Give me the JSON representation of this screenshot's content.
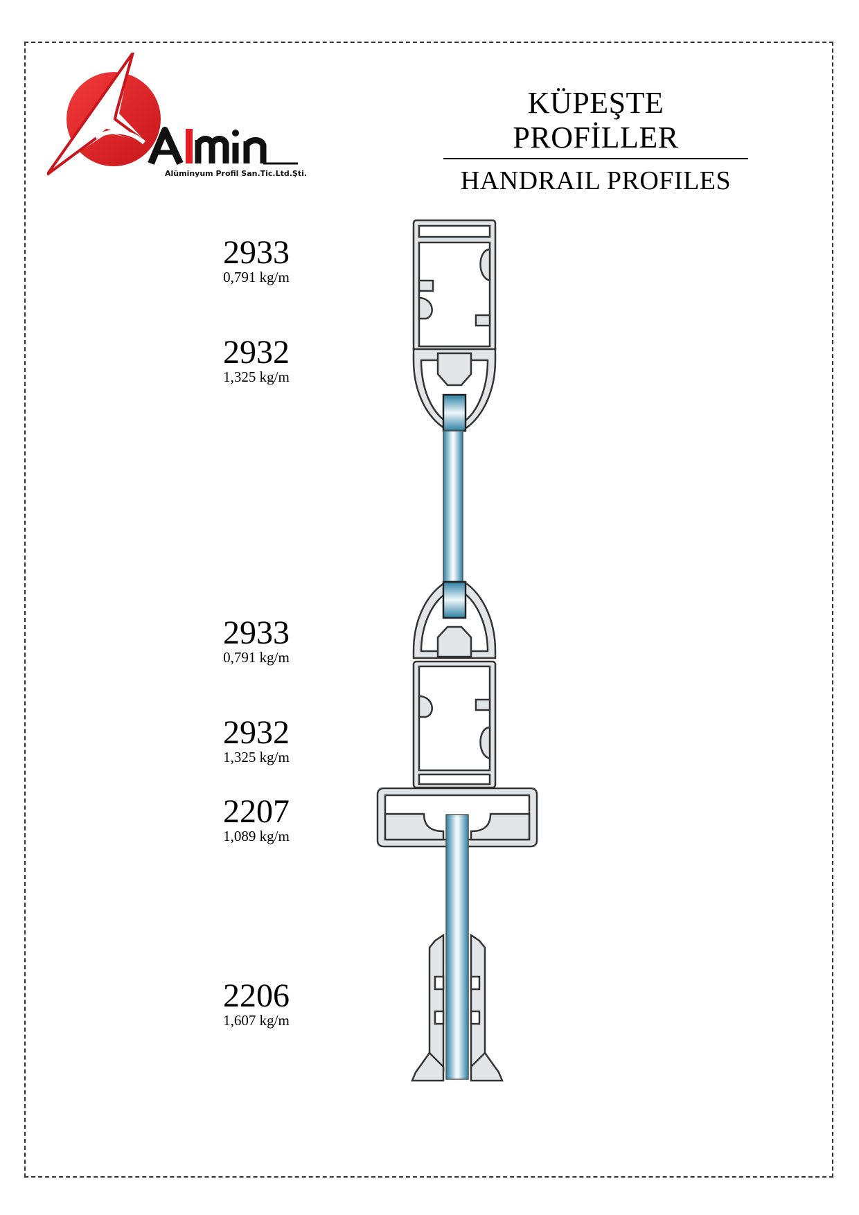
{
  "header": {
    "title_tr": "KÜPEŞTE PROFİLLER",
    "title_en": "HANDRAIL PROFILES"
  },
  "logo": {
    "brand": "Almin",
    "company": "Alüminyum Profil San.Tic.Ltd.Şti.",
    "brand_color": "#e31e24"
  },
  "profiles": [
    {
      "code": "2933",
      "weight": "0,791 kg/m"
    },
    {
      "code": "2932",
      "weight": "1,325 kg/m"
    },
    {
      "code": "2933",
      "weight": "0,791 kg/m"
    },
    {
      "code": "2932",
      "weight": "1,325 kg/m"
    },
    {
      "code": "2207",
      "weight": "1,089 kg/m"
    },
    {
      "code": "2206",
      "weight": "1,607 kg/m"
    }
  ],
  "colors": {
    "profile_fill": "#e2e5e8",
    "profile_stroke": "#333333",
    "glass_dark": "#2b7fa3",
    "glass_light": "#eef7fb"
  }
}
